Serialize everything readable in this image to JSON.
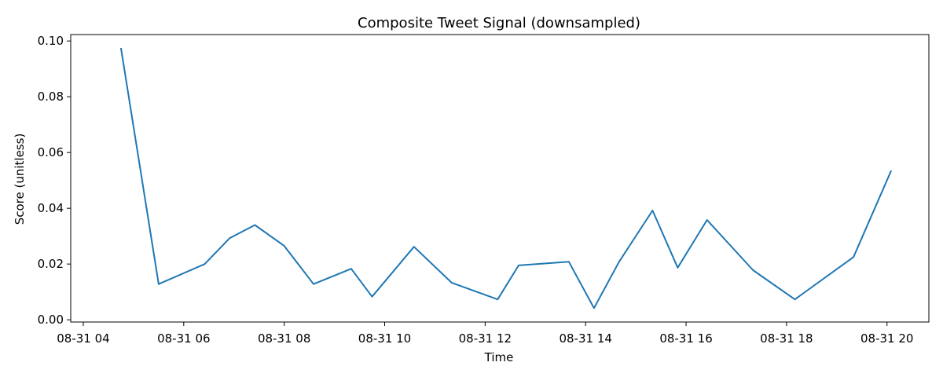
{
  "chart_data": {
    "type": "line",
    "title": "Composite Tweet Signal (downsampled)",
    "xlabel": "Time",
    "ylabel": "Score (unitless)",
    "xlim": [
      "08-31 03:45",
      "08-31 20:50"
    ],
    "ylim": [
      -0.0008,
      0.1023
    ],
    "x_ticks": [
      "08-31 04",
      "08-31 06",
      "08-31 08",
      "08-31 10",
      "08-31 12",
      "08-31 14",
      "08-31 16",
      "08-31 18",
      "08-31 20"
    ],
    "y_ticks": [
      "0.00",
      "0.02",
      "0.04",
      "0.06",
      "0.08",
      "0.10"
    ],
    "grid": false,
    "legend": "none",
    "series": [
      {
        "color": "#1f77b4",
        "x": [
          "08-31 04:45",
          "08-31 05:30",
          "08-31 06:25",
          "08-31 06:55",
          "08-31 07:25",
          "08-31 08:00",
          "08-31 08:35",
          "08-31 09:20",
          "08-31 09:45",
          "08-31 10:35",
          "08-31 11:20",
          "08-31 12:15",
          "08-31 12:40",
          "08-31 13:40",
          "08-31 14:10",
          "08-31 14:40",
          "08-31 15:20",
          "08-31 15:50",
          "08-31 16:25",
          "08-31 17:20",
          "08-31 18:10",
          "08-31 19:20",
          "08-31 20:05"
        ],
        "values": [
          0.0975,
          0.0128,
          0.02,
          0.0293,
          0.034,
          0.0265,
          0.0128,
          0.0183,
          0.0083,
          0.0262,
          0.0133,
          0.0073,
          0.0195,
          0.0208,
          0.0042,
          0.0208,
          0.0392,
          0.0187,
          0.0358,
          0.0178,
          0.0073,
          0.0225,
          0.0535
        ]
      }
    ]
  }
}
